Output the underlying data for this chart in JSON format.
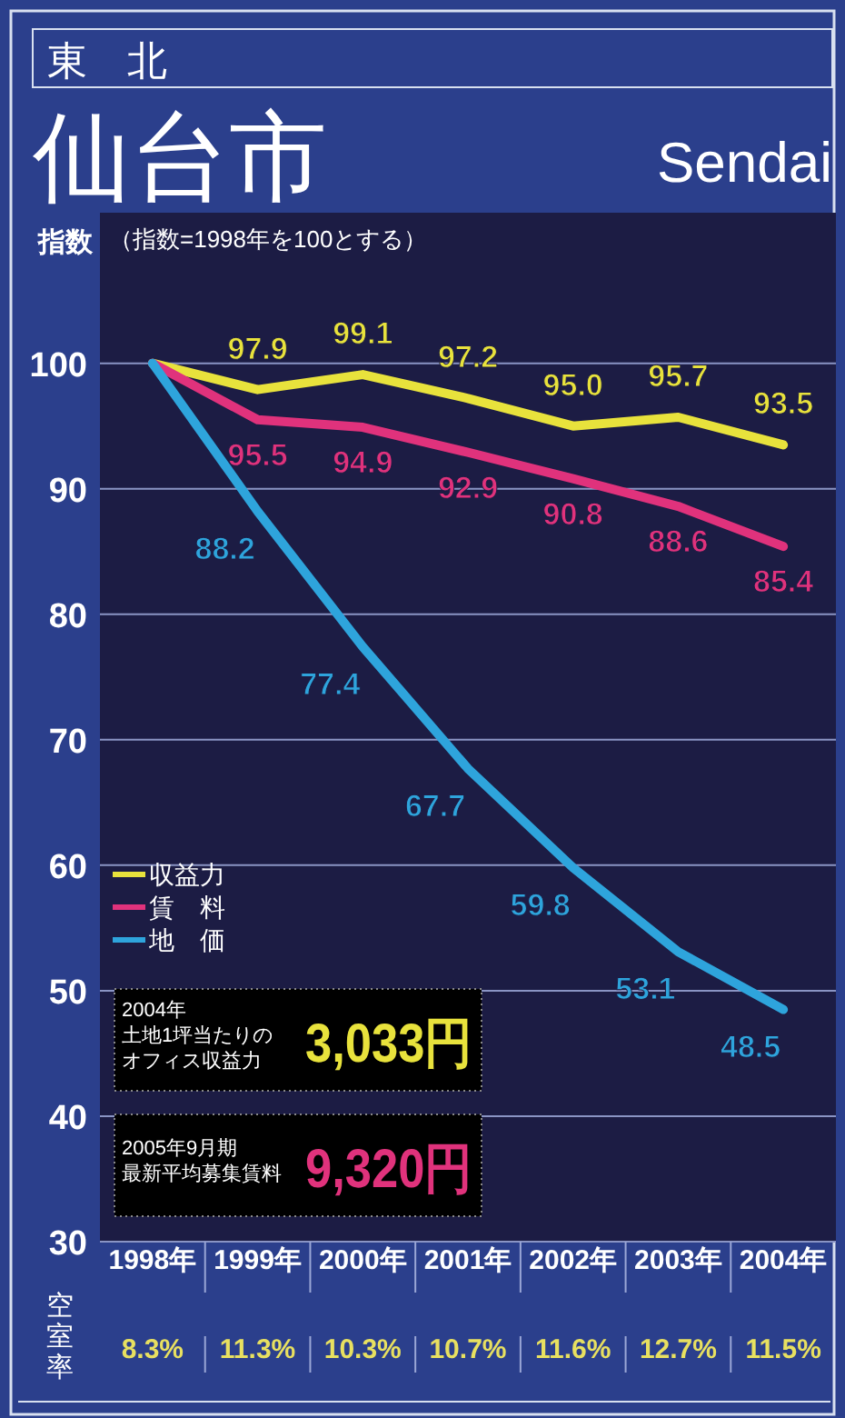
{
  "chart_data": {
    "type": "line",
    "title": "仙台市",
    "subtitle": "Sendai",
    "ylabel": "指数",
    "categories": [
      "1998年",
      "1999年",
      "2000年",
      "2001年",
      "2002年",
      "2003年",
      "2004年"
    ],
    "series": [
      {
        "name": "収益力",
        "color": "#e8e23c",
        "values": [
          100,
          97.9,
          99.1,
          97.2,
          95.0,
          95.7,
          93.5
        ],
        "value_labels": [
          null,
          "97.9",
          "99.1",
          "97.2",
          "95.0",
          "95.7",
          "93.5"
        ]
      },
      {
        "name": "賃　料",
        "color": "#e0327c",
        "values": [
          100,
          95.5,
          94.9,
          92.9,
          90.8,
          88.6,
          85.4
        ],
        "value_labels": [
          null,
          "95.5",
          "94.9",
          "92.9",
          "90.8",
          "88.6",
          "85.4"
        ]
      },
      {
        "name": "地　価",
        "color": "#2ea4dc",
        "values": [
          100,
          88.2,
          77.4,
          67.7,
          59.8,
          53.1,
          48.5
        ],
        "value_labels": [
          null,
          "88.2",
          "77.4",
          "67.7",
          "59.8",
          "53.1",
          "48.5"
        ]
      }
    ],
    "ylim": [
      30,
      112
    ],
    "yticks": [
      30,
      40,
      50,
      60,
      70,
      80,
      90,
      100
    ],
    "grid": "y",
    "legend": "left",
    "annotations": [
      "東　北",
      "（指数=1998年を100とする）",
      "2004年",
      "土地1坪当たりの",
      "オフィス収益力",
      "3,033円",
      "2005年9月期",
      "最新平均募集賃料",
      "9,320円",
      "空室率",
      "8.3%",
      "11.3%",
      "10.3%",
      "10.7%",
      "11.6%",
      "12.7%",
      "11.5%"
    ]
  }
}
